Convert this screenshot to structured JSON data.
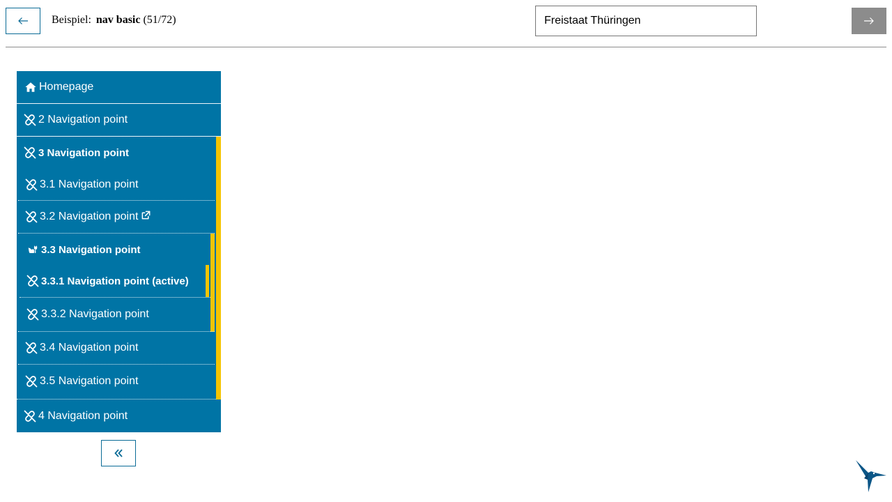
{
  "header": {
    "example_prefix": "Beispiel:",
    "example_name": "nav basic",
    "example_count": "(51/72)",
    "theme_value": "Freistaat Thüringen"
  },
  "nav": {
    "items": [
      {
        "label": "Homepage",
        "icon": "home-icon"
      },
      {
        "label": "2 Navigation point",
        "icon": "link-slash-icon"
      },
      {
        "label": "3 Navigation point",
        "icon": "link-slash-icon"
      },
      {
        "label": "3.1 Navigation point",
        "icon": "link-slash-icon"
      },
      {
        "label": "3.2 Navigation point",
        "icon": "link-slash-icon",
        "trailing_icon": "external-link-icon"
      },
      {
        "label": "3.3 Navigation point",
        "icon": "cat-icon"
      },
      {
        "label": "3.3.1 Navigation point (active)",
        "icon": "link-slash-icon"
      },
      {
        "label": "3.3.2 Navigation point",
        "icon": "link-slash-icon"
      },
      {
        "label": "3.4 Navigation point",
        "icon": "link-slash-icon"
      },
      {
        "label": "3.5 Navigation point",
        "icon": "link-slash-icon"
      },
      {
        "label": "4 Navigation point",
        "icon": "link-slash-icon"
      }
    ],
    "collapse_icon": "double-chevron-left-icon"
  },
  "colors": {
    "nav_bg": "#0074a5",
    "active_bar": "#f5c400",
    "border_blue": "#0a6b96",
    "next_button": "#8c8c8c"
  },
  "icons": {
    "prev": "arrow-left-icon",
    "next": "arrow-right-icon",
    "logo": "hummingbird-logo-icon"
  }
}
